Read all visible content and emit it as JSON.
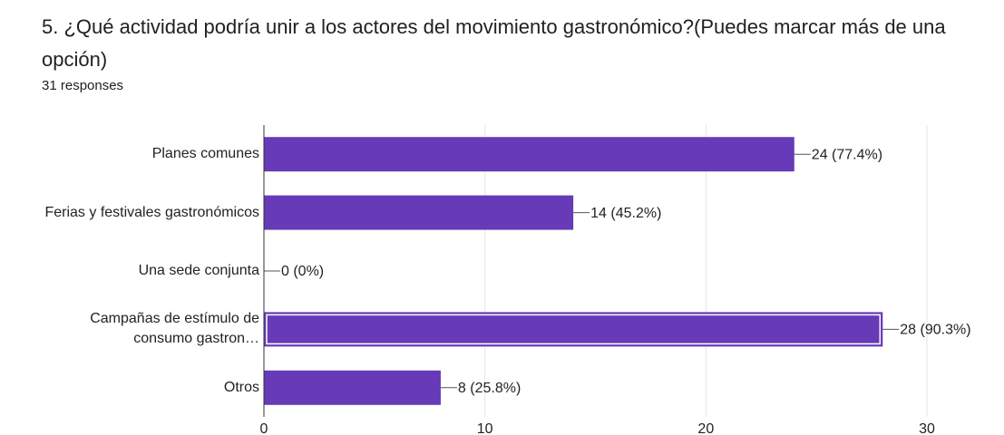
{
  "chart_data": {
    "type": "bar",
    "orientation": "horizontal",
    "title": "5. ¿Qué actividad podría unir a los actores del movimiento gastronómico?(Puedes marcar más de una opción)",
    "subtitle": "31 responses",
    "categories": [
      "Planes comunes",
      "Ferias y festivales gastronómicos",
      "Una sede conjunta",
      "Campañas de estímulo de\nconsumo gastron…",
      "Otros"
    ],
    "values": [
      24,
      14,
      0,
      28,
      8
    ],
    "value_labels": [
      "24 (77.4%)",
      "14 (45.2%)",
      "0 (0%)",
      "28 (90.3%)",
      "8 (25.8%)"
    ],
    "color": "#673ab7",
    "highlight": 3,
    "xlim": [
      0,
      30
    ],
    "xticks": [
      0,
      10,
      20,
      30
    ],
    "grid": true
  }
}
